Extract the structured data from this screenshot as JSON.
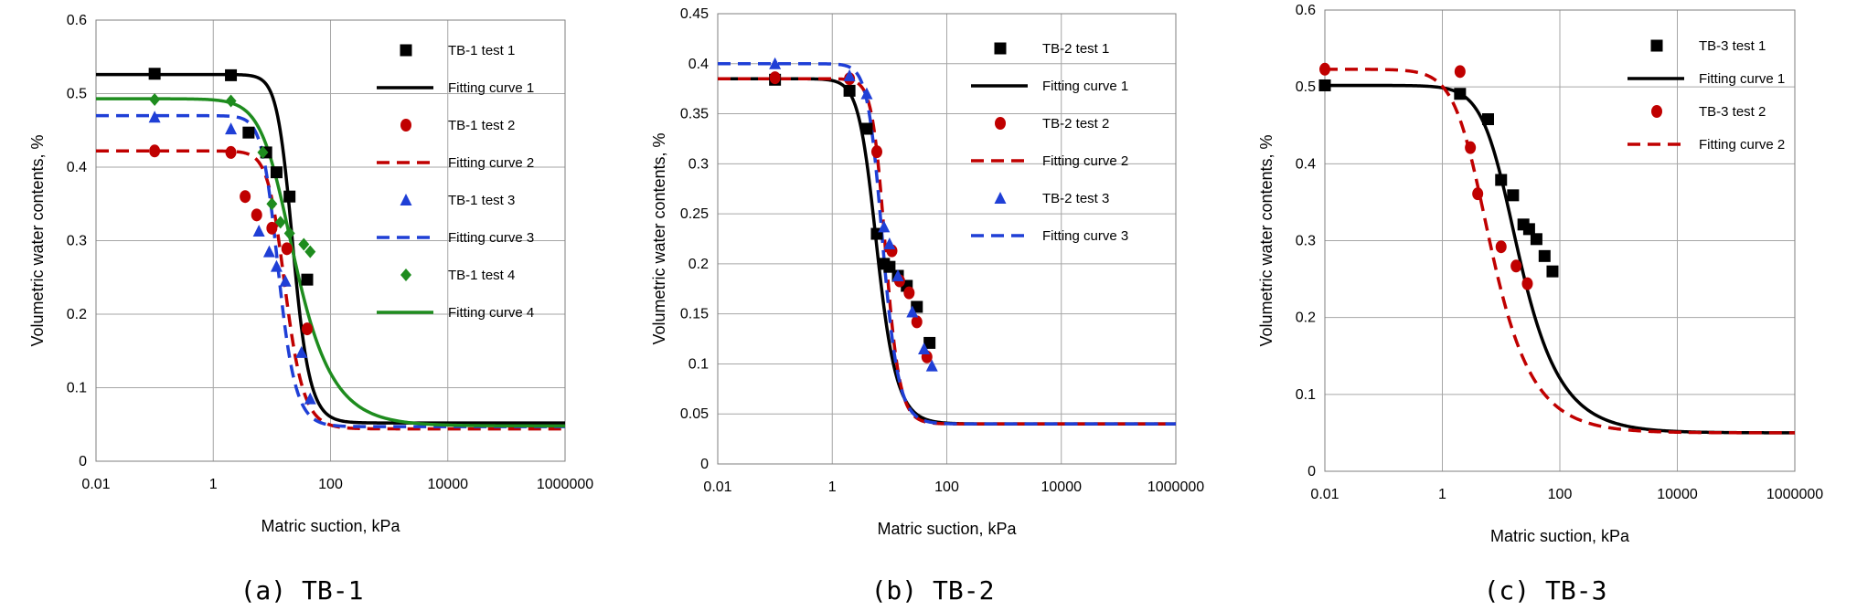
{
  "chart_data": [
    {
      "type": "scatter",
      "caption": "(a) TB-1",
      "xlabel": "Matric suction, kPa",
      "ylabel": "Volumetric water contents, %",
      "xscale": "log",
      "xlim": [
        0.01,
        1000000
      ],
      "ylim": [
        0,
        0.6
      ],
      "xticks": [
        "0.01",
        "1",
        "100",
        "10000",
        "1000000"
      ],
      "yticks": [
        "0",
        "0.1",
        "0.2",
        "0.3",
        "0.4",
        "0.5",
        "0.6"
      ],
      "grid": true,
      "legend_position": "right",
      "series": [
        {
          "name": "TB-1 test 1",
          "kind": "points",
          "marker": "square",
          "color": "#000000",
          "x": [
            0.1,
            2,
            4,
            8,
            12,
            20,
            40
          ],
          "y": [
            0.527,
            0.525,
            0.447,
            0.42,
            0.393,
            0.36,
            0.247
          ]
        },
        {
          "name": "Fitting curve 1",
          "kind": "curve",
          "dash": "solid",
          "color": "#000000",
          "vg": {
            "tr": 0.052,
            "ts": 0.526,
            "a": 0.05,
            "n": 3.5
          }
        },
        {
          "name": "TB-1 test 2",
          "kind": "points",
          "marker": "circle",
          "color": "#c00000",
          "x": [
            0.1,
            2,
            3.5,
            5.5,
            10,
            18,
            40
          ],
          "y": [
            0.422,
            0.42,
            0.36,
            0.335,
            0.317,
            0.289,
            0.18
          ]
        },
        {
          "name": "Fitting curve 2",
          "kind": "curve",
          "dash": "dashed",
          "color": "#c00000",
          "vg": {
            "tr": 0.044,
            "ts": 0.422,
            "a": 0.07,
            "n": 3.2
          }
        },
        {
          "name": "TB-1 test 3",
          "kind": "points",
          "marker": "triangle",
          "color": "#1f3fd6",
          "x": [
            0.1,
            2,
            6,
            9,
            12,
            17,
            32,
            45
          ],
          "y": [
            0.468,
            0.452,
            0.313,
            0.285,
            0.265,
            0.245,
            0.148,
            0.085
          ]
        },
        {
          "name": "Fitting curve 3",
          "kind": "curve",
          "dash": "dashed",
          "color": "#1f3fd6",
          "vg": {
            "tr": 0.047,
            "ts": 0.47,
            "a": 0.09,
            "n": 3.4
          }
        },
        {
          "name": "TB-1 test 4",
          "kind": "points",
          "marker": "diamond",
          "color": "#1e8c1e",
          "x": [
            0.1,
            2,
            7,
            10,
            14,
            20,
            35,
            45
          ],
          "y": [
            0.492,
            0.49,
            0.42,
            0.35,
            0.325,
            0.31,
            0.295,
            0.285
          ]
        },
        {
          "name": "Fitting curve 4",
          "kind": "curve",
          "dash": "solid",
          "color": "#1e8c1e",
          "vg": {
            "tr": 0.048,
            "ts": 0.493,
            "a": 0.075,
            "n": 1.9
          }
        }
      ]
    },
    {
      "type": "scatter",
      "caption": "(b) TB-2",
      "xlabel": "Matric suction, kPa",
      "ylabel": "Volumetric water contents, %",
      "xscale": "log",
      "xlim": [
        0.01,
        1000000
      ],
      "ylim": [
        0,
        0.45
      ],
      "xticks": [
        "0.01",
        "1",
        "100",
        "10000",
        "1000000"
      ],
      "yticks": [
        "0",
        "0.05",
        "0.1",
        "0.15",
        "0.2",
        "0.25",
        "0.3",
        "0.35",
        "0.4",
        "0.45"
      ],
      "grid": true,
      "legend_position": "right",
      "series": [
        {
          "name": "TB-2 test 1",
          "kind": "points",
          "marker": "square",
          "color": "#000000",
          "x": [
            0.1,
            2,
            4,
            6,
            8,
            10,
            14,
            20,
            30,
            50
          ],
          "y": [
            0.384,
            0.373,
            0.335,
            0.23,
            0.2,
            0.197,
            0.188,
            0.178,
            0.157,
            0.121
          ]
        },
        {
          "name": "Fitting curve 1",
          "kind": "curve",
          "dash": "solid",
          "color": "#000000",
          "vg": {
            "tr": 0.04,
            "ts": 0.385,
            "a": 0.2,
            "n": 3.0
          }
        },
        {
          "name": "TB-2 test 2",
          "kind": "points",
          "marker": "circle",
          "color": "#c00000",
          "x": [
            0.1,
            2,
            6,
            11,
            15,
            22,
            30,
            45
          ],
          "y": [
            0.386,
            0.385,
            0.312,
            0.213,
            0.183,
            0.171,
            0.142,
            0.107
          ]
        },
        {
          "name": "Fitting curve 2",
          "kind": "curve",
          "dash": "dashed",
          "color": "#c00000",
          "vg": {
            "tr": 0.04,
            "ts": 0.385,
            "a": 0.13,
            "n": 4.0
          }
        },
        {
          "name": "TB-2 test 3",
          "kind": "points",
          "marker": "triangle",
          "color": "#1f3fd6",
          "x": [
            0.1,
            2,
            4,
            8,
            10,
            14,
            25,
            40,
            55
          ],
          "y": [
            0.4,
            0.388,
            0.37,
            0.237,
            0.22,
            0.188,
            0.152,
            0.115,
            0.098
          ]
        },
        {
          "name": "Fitting curve 3",
          "kind": "curve",
          "dash": "dashed",
          "color": "#1f3fd6",
          "vg": {
            "tr": 0.04,
            "ts": 0.4,
            "a": 0.15,
            "n": 3.6
          }
        }
      ]
    },
    {
      "type": "scatter",
      "caption": "(c) TB-3",
      "xlabel": "Matric suction, kPa",
      "ylabel": "Volumetric water contents, %",
      "xscale": "log",
      "xlim": [
        0.01,
        1000000
      ],
      "ylim": [
        0,
        0.6
      ],
      "xticks": [
        "0.01",
        "1",
        "100",
        "10000",
        "1000000"
      ],
      "yticks": [
        "0",
        "0.1",
        "0.2",
        "0.3",
        "0.4",
        "0.5",
        "0.6"
      ],
      "grid": true,
      "legend_position": "top-right",
      "series": [
        {
          "name": "TB-3 test 1",
          "kind": "points",
          "marker": "square",
          "color": "#000000",
          "x": [
            0.01,
            2,
            6,
            10,
            16,
            24,
            30,
            40,
            55,
            75
          ],
          "y": [
            0.502,
            0.491,
            0.458,
            0.379,
            0.359,
            0.321,
            0.315,
            0.302,
            0.28,
            0.26
          ]
        },
        {
          "name": "Fitting curve 1",
          "kind": "curve",
          "dash": "solid",
          "color": "#000000",
          "vg": {
            "tr": 0.05,
            "ts": 0.502,
            "a": 0.1,
            "n": 1.8
          }
        },
        {
          "name": "TB-3 test 2",
          "kind": "points",
          "marker": "circle",
          "color": "#c00000",
          "x": [
            0.01,
            2,
            3,
            4,
            10,
            18,
            28
          ],
          "y": [
            0.523,
            0.52,
            0.421,
            0.361,
            0.292,
            0.267,
            0.244
          ]
        },
        {
          "name": "Fitting curve 2",
          "kind": "curve",
          "dash": "dashed",
          "color": "#c00000",
          "vg": {
            "tr": 0.05,
            "ts": 0.523,
            "a": 0.3,
            "n": 1.8
          }
        }
      ]
    }
  ]
}
